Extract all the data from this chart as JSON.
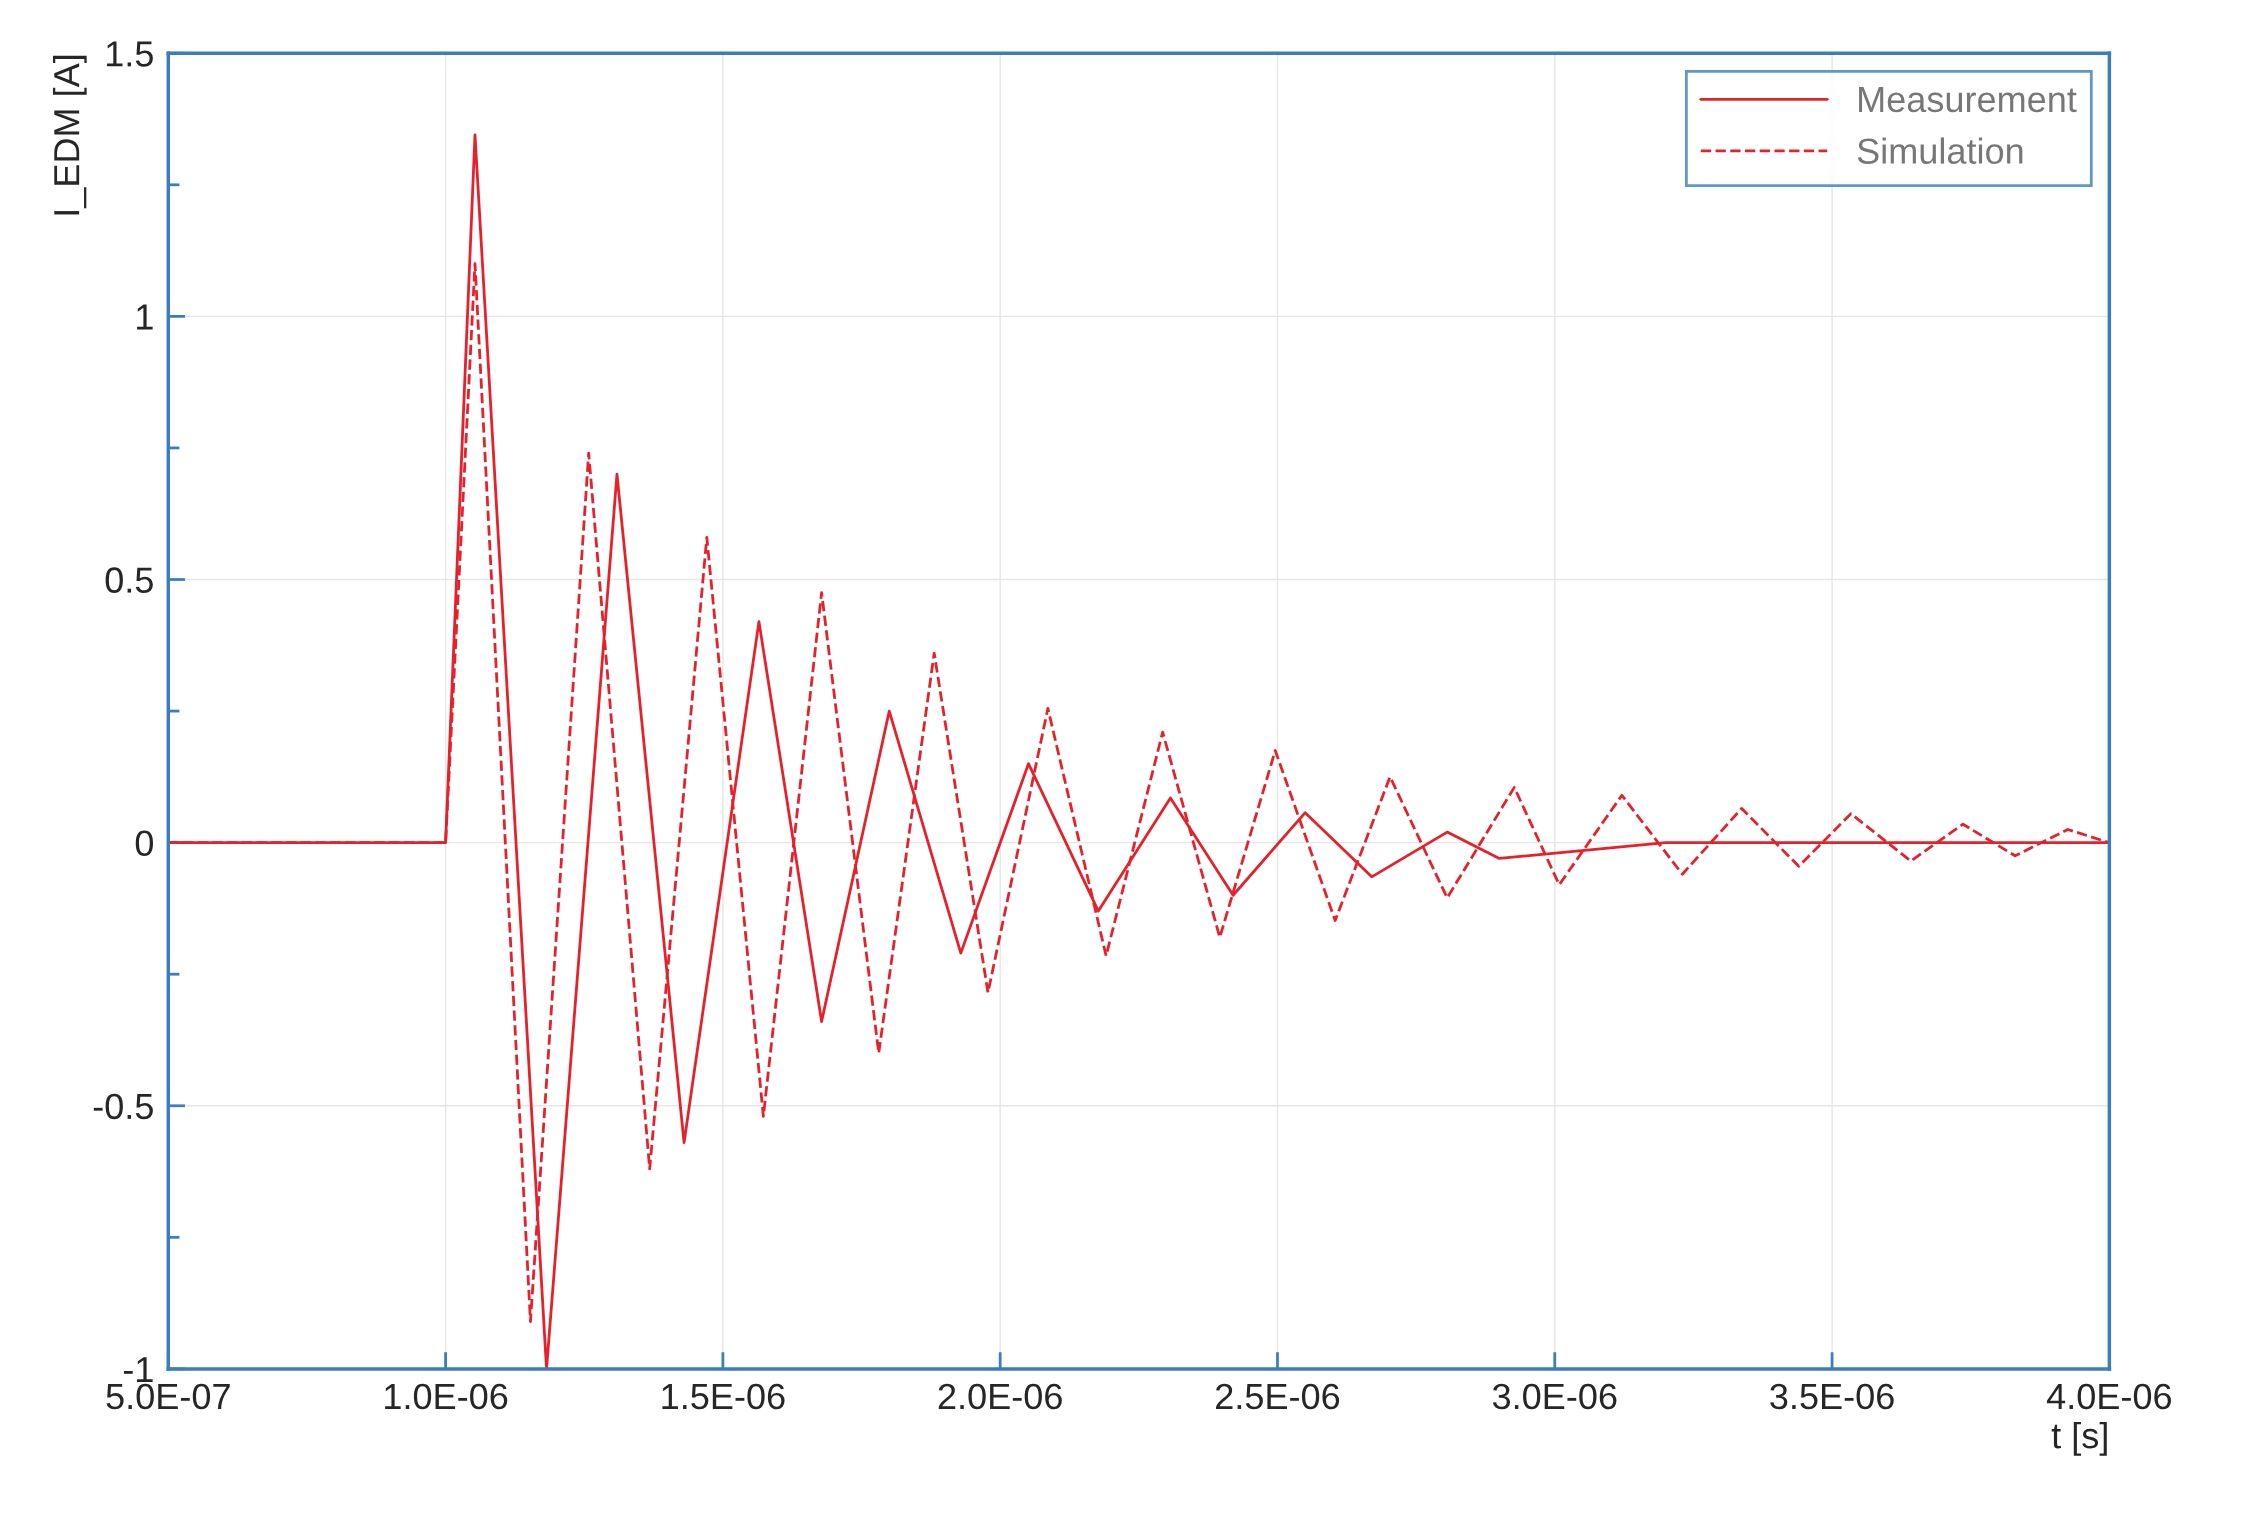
{
  "chart_data": {
    "type": "line",
    "xlabel": "t [s]",
    "ylabel": "I_EDM [A]",
    "xlim": [
      5e-07,
      4e-06
    ],
    "xticks": [
      {
        "value": 5e-07,
        "label": "5.0E-07"
      },
      {
        "value": 1e-06,
        "label": "1.0E-06"
      },
      {
        "value": 1.5e-06,
        "label": "1.5E-06"
      },
      {
        "value": 2e-06,
        "label": "2.0E-06"
      },
      {
        "value": 2.5e-06,
        "label": "2.5E-06"
      },
      {
        "value": 3e-06,
        "label": "3.0E-06"
      },
      {
        "value": 3.5e-06,
        "label": "3.5E-06"
      },
      {
        "value": 4e-06,
        "label": "4.0E-06"
      }
    ],
    "ylim": [
      -1,
      1.5
    ],
    "yticks": [
      -1,
      {
        "value": -0.75,
        "label": null
      },
      -0.5,
      {
        "value": -0.25,
        "label": null
      },
      0,
      {
        "value": 0.25,
        "label": null
      },
      0.5,
      {
        "value": 0.75,
        "label": null
      },
      1,
      {
        "value": 1.25,
        "label": null
      },
      1.5
    ],
    "grid": true,
    "legend": "top right",
    "series": [
      {
        "name": "Measurement",
        "color": "#e8202a",
        "line_style": "solid",
        "x": [
          5e-07,
          1e-06,
          1.053e-06,
          1.182e-06,
          1.309e-06,
          1.43e-06,
          1.565e-06,
          1.678e-06,
          1.8e-06,
          1.929e-06,
          2.051e-06,
          2.177e-06,
          2.307e-06,
          2.42e-06,
          2.55e-06,
          2.67e-06,
          2.806e-06,
          2.9e-06,
          3.2e-06,
          3.5e-06,
          4e-06
        ],
        "values": [
          0,
          0,
          1.345,
          -1.0,
          0.7,
          -0.57,
          0.42,
          -0.34,
          0.25,
          -0.21,
          0.15,
          -0.13,
          0.085,
          -0.1,
          0.057,
          -0.065,
          0.02,
          -0.03,
          0,
          0,
          0
        ]
      },
      {
        "name": "Simulation",
        "color": "#e8202a",
        "line_style": "dashed",
        "x": [
          5e-07,
          1e-06,
          1.053e-06,
          1.153e-06,
          1.258e-06,
          1.368e-06,
          1.471e-06,
          1.573e-06,
          1.678e-06,
          1.781e-06,
          1.881e-06,
          1.978e-06,
          2.086e-06,
          2.191e-06,
          2.293e-06,
          2.396e-06,
          2.496e-06,
          2.604e-06,
          2.703e-06,
          2.806e-06,
          2.927e-06,
          3.008e-06,
          3.121e-06,
          3.23e-06,
          3.337e-06,
          3.44e-06,
          3.534e-06,
          3.642e-06,
          3.736e-06,
          3.83e-06,
          3.925e-06,
          4e-06
        ],
        "values": [
          0,
          0,
          1.1,
          -0.91,
          0.74,
          -0.62,
          0.58,
          -0.52,
          0.475,
          -0.4,
          0.36,
          -0.285,
          0.255,
          -0.215,
          0.21,
          -0.18,
          0.175,
          -0.148,
          0.125,
          -0.105,
          0.105,
          -0.08,
          0.09,
          -0.06,
          0.065,
          -0.045,
          0.055,
          -0.035,
          0.035,
          -0.025,
          0.025,
          0
        ]
      }
    ]
  }
}
